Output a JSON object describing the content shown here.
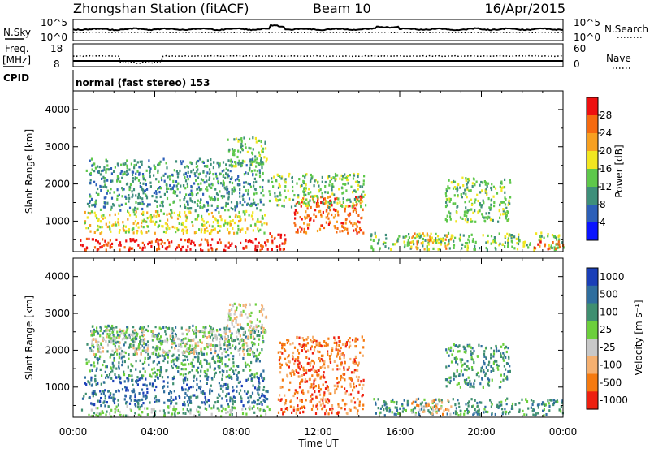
{
  "header": {
    "title": "Zhongshan Station (fitACF)",
    "beam": "Beam 10",
    "date": "16/Apr/2015"
  },
  "noise_panel": {
    "left_label": "N.Sky",
    "right_label": "N.Search",
    "left_ticks": [
      "10^5",
      "10^0"
    ],
    "right_ticks": [
      "10^5",
      "10^0"
    ]
  },
  "freq_panel": {
    "left_label_1": "Freq.",
    "left_label_2": "[MHz]",
    "right_label": "Nave",
    "left_ticks": [
      "18",
      "8"
    ],
    "right_ticks": [
      "60",
      "0"
    ]
  },
  "cpid": {
    "label": "CPID",
    "text": "normal (fast stereo) 153"
  },
  "chart_data": [
    {
      "type": "heatmap",
      "name": "power",
      "ylabel": "Slant Range [km]",
      "xlabel": "Time UT",
      "x_ticks": [
        "00:00",
        "04:00",
        "08:00",
        "12:00",
        "16:00",
        "20:00",
        "00:00"
      ],
      "xlim_hours": [
        0,
        24
      ],
      "y_ticks": [
        1000,
        2000,
        3000,
        4000
      ],
      "ylim_km": [
        180,
        4500
      ],
      "colorbar": {
        "label": "Power [dB]",
        "ticks": [
          "4",
          "8",
          "12",
          "16",
          "20",
          "24",
          "28"
        ],
        "range": [
          0,
          30
        ],
        "colors": [
          "#0a14ff",
          "#2c5fb8",
          "#3e8f7a",
          "#5ec84b",
          "#f2e620",
          "#f7a020",
          "#f56a10",
          "#ee1010"
        ]
      },
      "regions": [
        {
          "t0": 0.3,
          "t1": 9.6,
          "r0": 230,
          "r1": 560,
          "level": 7
        },
        {
          "t0": 9.4,
          "t1": 10.4,
          "r0": 250,
          "r1": 750,
          "level": 7
        },
        {
          "t0": 10.8,
          "t1": 14.2,
          "r0": 700,
          "r1": 1700,
          "level": 6
        },
        {
          "t0": 0.5,
          "t1": 9.5,
          "r0": 700,
          "r1": 1300,
          "level": 4
        },
        {
          "t0": 0.6,
          "t1": 9.3,
          "r0": 1300,
          "r1": 2700,
          "level": 2
        },
        {
          "t0": 9.5,
          "t1": 14.3,
          "r0": 1400,
          "r1": 2300,
          "level": 3
        },
        {
          "t0": 7.5,
          "t1": 9.5,
          "r0": 2500,
          "r1": 3300,
          "level": 3
        },
        {
          "t0": 14.5,
          "t1": 24,
          "r0": 260,
          "r1": 720,
          "level": 3
        },
        {
          "t0": 18.2,
          "t1": 21.4,
          "r0": 1000,
          "r1": 2200,
          "level": 3
        },
        {
          "t0": 16.5,
          "t1": 18.5,
          "r0": 280,
          "r1": 700,
          "level": 5
        },
        {
          "t0": 22.5,
          "t1": 24,
          "r0": 280,
          "r1": 500,
          "level": 6
        }
      ]
    },
    {
      "type": "heatmap",
      "name": "velocity",
      "ylabel": "Slant Range [km]",
      "xlabel": "Time UT",
      "x_ticks": [
        "00:00",
        "04:00",
        "08:00",
        "12:00",
        "16:00",
        "20:00",
        "00:00"
      ],
      "xlim_hours": [
        0,
        24
      ],
      "y_ticks": [
        1000,
        2000,
        3000,
        4000
      ],
      "ylim_km": [
        180,
        4500
      ],
      "colorbar": {
        "label": "Velocity [m s⁻¹]",
        "ticks": [
          "1000",
          "500",
          "100",
          "25",
          "-25",
          "-100",
          "-500",
          "-1000"
        ],
        "colors": [
          "#1a3fb8",
          "#2f6e9e",
          "#3f8f70",
          "#6ccf3c",
          "#c8c8c8",
          "#f5b070",
          "#f57a10",
          "#ee2010"
        ]
      },
      "regions": [
        {
          "t0": 0.3,
          "t1": 9.6,
          "r0": 230,
          "r1": 520,
          "level": 3
        },
        {
          "t0": 0.4,
          "t1": 9.5,
          "r0": 520,
          "r1": 1300,
          "level": 1
        },
        {
          "t0": 0.6,
          "t1": 9.3,
          "r0": 1300,
          "r1": 2700,
          "level": 2
        },
        {
          "t0": 0.8,
          "t1": 8.8,
          "r0": 1900,
          "r1": 2600,
          "level": 4
        },
        {
          "t0": 10.0,
          "t1": 14.2,
          "r0": 300,
          "r1": 2400,
          "level": 6
        },
        {
          "t0": 7.5,
          "t1": 9.5,
          "r0": 2500,
          "r1": 3300,
          "level": 4
        },
        {
          "t0": 14.5,
          "t1": 24,
          "r0": 260,
          "r1": 720,
          "level": 2
        },
        {
          "t0": 18.2,
          "t1": 21.4,
          "r0": 1000,
          "r1": 2200,
          "level": 2
        },
        {
          "t0": 16.5,
          "t1": 18.5,
          "r0": 280,
          "r1": 700,
          "level": 5
        }
      ]
    }
  ]
}
